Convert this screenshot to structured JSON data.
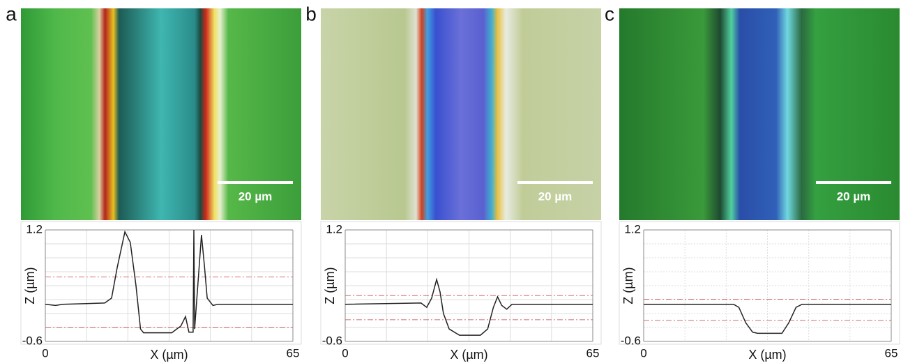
{
  "chart_data": [
    {
      "type": "line",
      "label": "a",
      "scale_bar": "20 µm",
      "xlabel": "X (µm)",
      "ylabel": "Z (µm)",
      "xlim": [
        0,
        65
      ],
      "ylim": [
        -0.6,
        1.2
      ],
      "xticks": [
        0,
        65
      ],
      "yticks": [
        -0.6,
        1.2
      ],
      "grid": true,
      "color": "#222222",
      "reference_lines": {
        "values": [
          0.44,
          -0.38
        ],
        "color": "#d46a6a"
      },
      "x": [
        0,
        2.7,
        4.6,
        15.6,
        17.4,
        18.9,
        20.9,
        22.3,
        23.8,
        25,
        25.8,
        33.2,
        35.6,
        36.8,
        37.7,
        38.8,
        39,
        39.2,
        41,
        41.8,
        42.5,
        44,
        45.4,
        65
      ],
      "values": [
        0,
        -0.02,
        0,
        0.02,
        0.1,
        0.6,
        1.17,
        1.0,
        0.3,
        -0.4,
        -0.46,
        -0.46,
        -0.35,
        -0.2,
        -0.45,
        -0.45,
        1.2,
        -0.4,
        1.12,
        0.6,
        0.1,
        -0.02,
        0,
        0
      ]
    },
    {
      "type": "line",
      "label": "b",
      "scale_bar": "20 µm",
      "xlabel": "X (µm)",
      "ylabel": "Z (µm)",
      "xlim": [
        0,
        65
      ],
      "ylim": [
        -0.6,
        1.2
      ],
      "xticks": [
        0,
        65
      ],
      "yticks": [
        -0.6,
        1.2
      ],
      "grid": true,
      "color": "#222222",
      "reference_lines": {
        "values": [
          0.14,
          -0.25
        ],
        "color": "#d46a6a"
      },
      "x": [
        0,
        19.9,
        21.4,
        22.7,
        24,
        24.9,
        25.8,
        27.3,
        30,
        35.5,
        37.4,
        38.9,
        40,
        41.1,
        42.4,
        43.8,
        65
      ],
      "values": [
        0,
        0.02,
        -0.05,
        0.1,
        0.4,
        0.2,
        -0.15,
        -0.4,
        -0.5,
        -0.5,
        -0.4,
        -0.05,
        0.12,
        -0.02,
        -0.08,
        0,
        0
      ]
    },
    {
      "type": "line",
      "label": "c",
      "scale_bar": "20 µm",
      "xlabel": "X (µm)",
      "ylabel": "Z (µm)",
      "xlim": [
        0,
        65
      ],
      "ylim": [
        -0.6,
        1.2
      ],
      "xticks": [
        0,
        65
      ],
      "yticks": [
        -0.6,
        1.2
      ],
      "grid": true,
      "color": "#222222",
      "reference_lines": {
        "values": [
          0.08,
          -0.26
        ],
        "color": "#d46a6a"
      },
      "x": [
        0,
        23.6,
        25,
        26.8,
        28.6,
        29.9,
        36.3,
        38.1,
        40,
        41.6,
        65
      ],
      "values": [
        0,
        0,
        -0.05,
        -0.3,
        -0.45,
        -0.47,
        -0.47,
        -0.3,
        -0.05,
        0,
        0
      ]
    }
  ]
}
